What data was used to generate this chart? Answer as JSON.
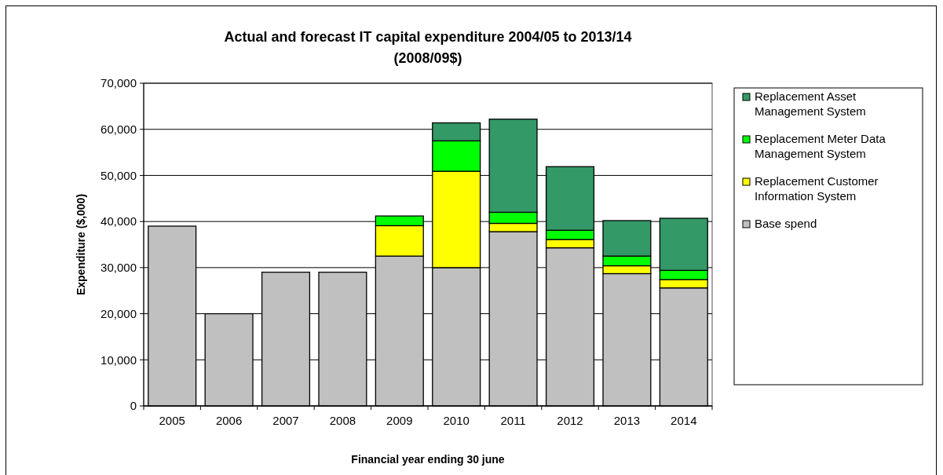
{
  "chart_data": {
    "type": "bar",
    "title": "Actual and forecast IT capital expenditure 2004/05 to 2013/14",
    "subtitle": "(2008/09$)",
    "xlabel": "Financial year ending 30 june",
    "ylabel": "Expenditure ($,000)",
    "categories": [
      "2005",
      "2006",
      "2007",
      "2008",
      "2009",
      "2010",
      "2011",
      "2012",
      "2013",
      "2014"
    ],
    "stacked": true,
    "series": [
      {
        "name": "Base spend",
        "color": "#c0c0c0",
        "values": [
          39000,
          20000,
          29000,
          29000,
          32500,
          30000,
          37800,
          34300,
          28700,
          25600
        ]
      },
      {
        "name": "Replacement Customer Information System",
        "color": "#ffff00",
        "values": [
          0,
          0,
          0,
          0,
          6600,
          20900,
          1800,
          1800,
          1700,
          1800
        ]
      },
      {
        "name": "Replacement Meter Data Management System",
        "color": "#00ff00",
        "values": [
          0,
          0,
          0,
          0,
          2100,
          6600,
          2400,
          2000,
          2100,
          2000
        ]
      },
      {
        "name": "Replacement Asset Management System",
        "color": "#339966",
        "values": [
          0,
          0,
          0,
          0,
          0,
          3900,
          20200,
          13800,
          7700,
          11300
        ]
      }
    ],
    "ylim": [
      0,
      70000
    ],
    "yticks": [
      {
        "value": 0,
        "label": "0"
      },
      {
        "value": 10000,
        "label": "10,000"
      },
      {
        "value": 20000,
        "label": "20,000"
      },
      {
        "value": 30000,
        "label": "30,000"
      },
      {
        "value": 40000,
        "label": "40,000"
      },
      {
        "value": 50000,
        "label": "50,000"
      },
      {
        "value": 60000,
        "label": "60,000"
      },
      {
        "value": 70000,
        "label": "70,000"
      }
    ],
    "grid": "y",
    "legend": "right"
  }
}
